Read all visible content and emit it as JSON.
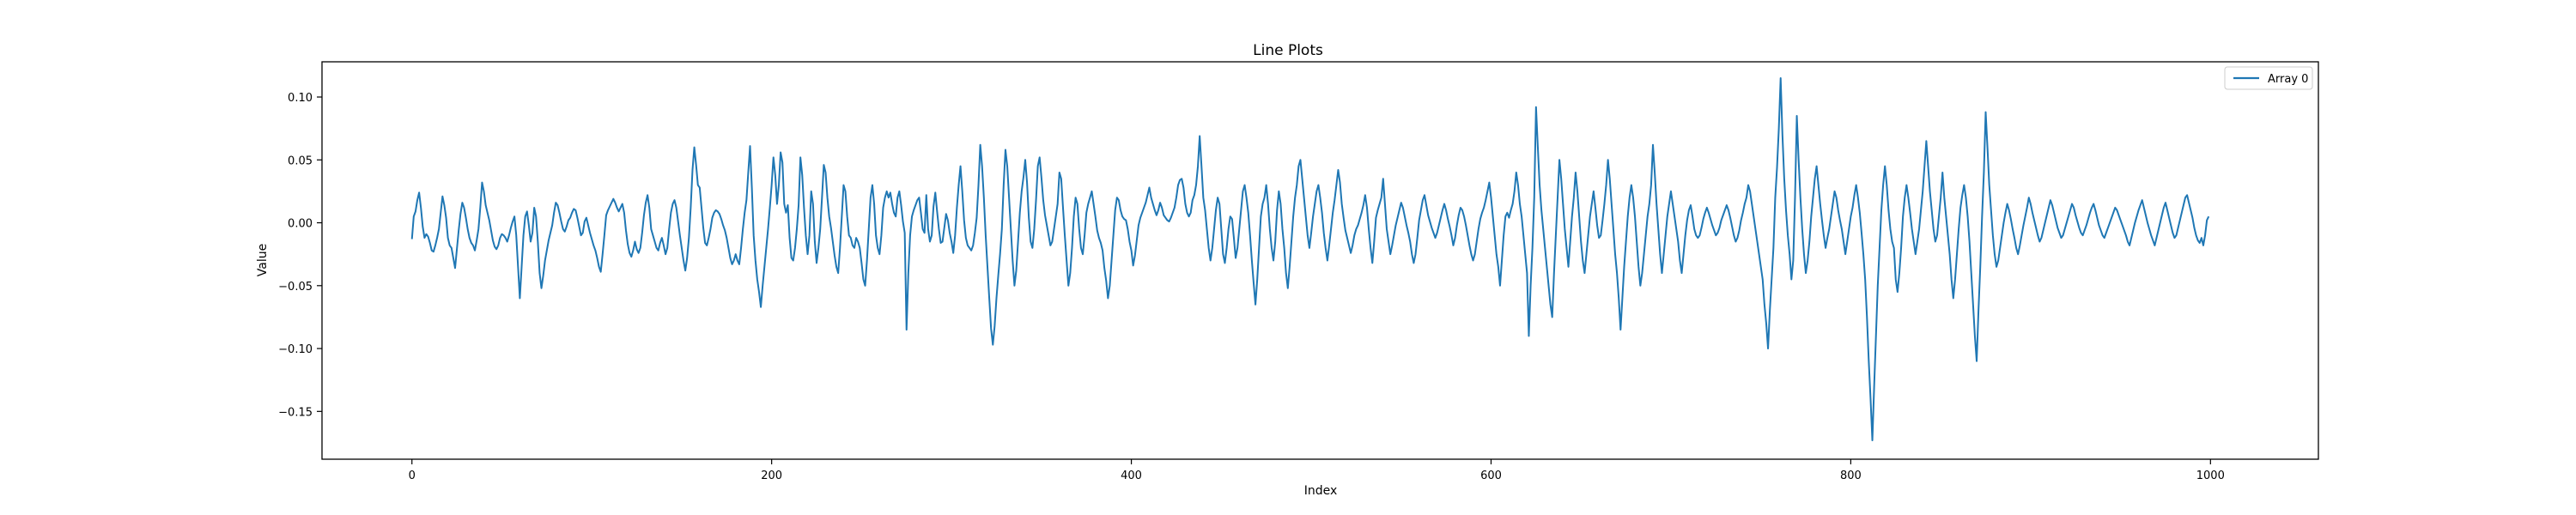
{
  "chart_data": {
    "type": "line",
    "title": "Line Plots",
    "xlabel": "Index",
    "ylabel": "Value",
    "xlim": [
      -50,
      1060
    ],
    "ylim": [
      -0.188,
      0.128
    ],
    "xticks": [
      0,
      200,
      400,
      600,
      800,
      1000
    ],
    "yticks": [
      -0.15,
      -0.1,
      -0.05,
      0.0,
      0.05,
      0.1
    ],
    "xtick_labels": [
      "0",
      "200",
      "400",
      "600",
      "800",
      "1000"
    ],
    "ytick_labels": [
      "−0.15",
      "−0.10",
      "−0.05",
      "0.00",
      "0.05",
      "0.10"
    ],
    "grid": false,
    "legend": {
      "position": "top-right",
      "entries": [
        "Array 0"
      ]
    },
    "series": [
      {
        "name": "Array 0",
        "color": "#1f77b4",
        "x_start": 0,
        "x_step": 1,
        "values": [
          -0.013,
          0.005,
          0.009,
          0.018,
          0.024,
          0.012,
          -0.003,
          -0.012,
          -0.009,
          -0.011,
          -0.016,
          -0.022,
          -0.023,
          -0.018,
          -0.012,
          -0.005,
          0.008,
          0.021,
          0.014,
          0.004,
          -0.012,
          -0.018,
          -0.02,
          -0.028,
          -0.036,
          -0.021,
          -0.006,
          0.007,
          0.016,
          0.012,
          0.004,
          -0.005,
          -0.012,
          -0.016,
          -0.018,
          -0.022,
          -0.014,
          -0.005,
          0.012,
          0.032,
          0.025,
          0.014,
          0.008,
          0.002,
          -0.006,
          -0.014,
          -0.019,
          -0.021,
          -0.018,
          -0.012,
          -0.009,
          -0.01,
          -0.012,
          -0.015,
          -0.01,
          -0.004,
          0.001,
          0.005,
          -0.01,
          -0.035,
          -0.06,
          -0.035,
          -0.01,
          0.005,
          0.009,
          -0.002,
          -0.015,
          -0.008,
          0.012,
          0.005,
          -0.015,
          -0.04,
          -0.052,
          -0.042,
          -0.03,
          -0.022,
          -0.014,
          -0.008,
          -0.002,
          0.008,
          0.016,
          0.014,
          0.008,
          0.001,
          -0.005,
          -0.007,
          -0.003,
          0.002,
          0.004,
          0.008,
          0.011,
          0.01,
          0.004,
          -0.003,
          -0.01,
          -0.008,
          0.001,
          0.004,
          -0.002,
          -0.008,
          -0.013,
          -0.018,
          -0.022,
          -0.028,
          -0.035,
          -0.039,
          -0.025,
          -0.01,
          0.006,
          0.01,
          0.013,
          0.016,
          0.019,
          0.016,
          0.012,
          0.009,
          0.012,
          0.015,
          0.008,
          -0.006,
          -0.017,
          -0.024,
          -0.027,
          -0.022,
          -0.015,
          -0.021,
          -0.024,
          -0.02,
          -0.008,
          0.006,
          0.016,
          0.022,
          0.012,
          -0.005,
          -0.01,
          -0.015,
          -0.02,
          -0.022,
          -0.016,
          -0.012,
          -0.018,
          -0.025,
          -0.02,
          -0.005,
          0.008,
          0.015,
          0.018,
          0.012,
          0.001,
          -0.01,
          -0.02,
          -0.03,
          -0.038,
          -0.028,
          -0.012,
          0.012,
          0.042,
          0.06,
          0.046,
          0.03,
          0.028,
          0.012,
          -0.004,
          -0.016,
          -0.018,
          -0.012,
          -0.005,
          0.004,
          0.008,
          0.01,
          0.009,
          0.007,
          0.003,
          -0.002,
          -0.006,
          -0.012,
          -0.02,
          -0.028,
          -0.033,
          -0.03,
          -0.025,
          -0.03,
          -0.033,
          -0.02,
          -0.005,
          0.008,
          0.018,
          0.04,
          0.061,
          0.028,
          -0.01,
          -0.03,
          -0.045,
          -0.055,
          -0.067,
          -0.05,
          -0.035,
          -0.02,
          -0.005,
          0.012,
          0.03,
          0.052,
          0.038,
          0.015,
          0.03,
          0.056,
          0.048,
          0.015,
          0.008,
          0.014,
          -0.012,
          -0.028,
          -0.03,
          -0.02,
          -0.005,
          0.014,
          0.052,
          0.038,
          0.012,
          -0.01,
          -0.025,
          -0.01,
          0.025,
          0.015,
          -0.015,
          -0.032,
          -0.02,
          -0.005,
          0.02,
          0.046,
          0.04,
          0.02,
          0.005,
          -0.004,
          -0.015,
          -0.026,
          -0.035,
          -0.04,
          -0.02,
          0.005,
          0.03,
          0.025,
          0.005,
          -0.01,
          -0.012,
          -0.018,
          -0.02,
          -0.012,
          -0.015,
          -0.02,
          -0.032,
          -0.045,
          -0.05,
          -0.03,
          -0.005,
          0.02,
          0.03,
          0.015,
          -0.01,
          -0.02,
          -0.025,
          -0.01,
          0.012,
          0.02,
          0.025,
          0.02,
          0.024,
          0.015,
          0.008,
          0.005,
          0.02,
          0.025,
          0.014,
          0.001,
          -0.008,
          -0.085,
          -0.04,
          -0.01,
          0.005,
          0.01,
          0.014,
          0.018,
          0.02,
          0.008,
          -0.005,
          -0.008,
          0.022,
          -0.005,
          -0.015,
          -0.01,
          0.013,
          0.024,
          0.009,
          -0.005,
          -0.016,
          -0.015,
          -0.004,
          0.007,
          0.002,
          -0.008,
          -0.015,
          -0.024,
          -0.01,
          0.012,
          0.03,
          0.045,
          0.025,
          0.002,
          -0.012,
          -0.018,
          -0.02,
          -0.022,
          -0.018,
          -0.008,
          0.004,
          0.03,
          0.062,
          0.045,
          0.02,
          -0.01,
          -0.035,
          -0.06,
          -0.084,
          -0.097,
          -0.082,
          -0.06,
          -0.042,
          -0.025,
          -0.005,
          0.03,
          0.058,
          0.045,
          0.02,
          -0.005,
          -0.03,
          -0.05,
          -0.038,
          -0.015,
          0.008,
          0.025,
          0.036,
          0.05,
          0.032,
          0.004,
          -0.015,
          -0.02,
          -0.005,
          0.018,
          0.045,
          0.052,
          0.036,
          0.018,
          0.006,
          -0.002,
          -0.01,
          -0.018,
          -0.015,
          -0.005,
          0.005,
          0.015,
          0.04,
          0.035,
          0.012,
          -0.01,
          -0.03,
          -0.05,
          -0.04,
          -0.02,
          0.005,
          0.02,
          0.015,
          -0.005,
          -0.02,
          -0.025,
          -0.01,
          0.008,
          0.015,
          0.02,
          0.025,
          0.015,
          0.005,
          -0.006,
          -0.012,
          -0.016,
          -0.022,
          -0.036,
          -0.046,
          -0.06,
          -0.05,
          -0.03,
          -0.01,
          0.01,
          0.02,
          0.018,
          0.01,
          0.005,
          0.003,
          0.002,
          -0.005,
          -0.015,
          -0.022,
          -0.034,
          -0.026,
          -0.014,
          -0.002,
          0.004,
          0.008,
          0.012,
          0.016,
          0.022,
          0.028,
          0.02,
          0.015,
          0.01,
          0.006,
          0.01,
          0.016,
          0.012,
          0.006,
          0.004,
          0.002,
          0.001,
          0.004,
          0.008,
          0.012,
          0.02,
          0.03,
          0.034,
          0.035,
          0.028,
          0.015,
          0.008,
          0.005,
          0.008,
          0.018,
          0.022,
          0.03,
          0.045,
          0.069,
          0.045,
          0.02,
          0.01,
          -0.005,
          -0.02,
          -0.03,
          -0.02,
          -0.005,
          0.01,
          0.02,
          0.015,
          -0.005,
          -0.025,
          -0.032,
          -0.02,
          -0.005,
          0.005,
          0.003,
          -0.012,
          -0.028,
          -0.02,
          -0.005,
          0.01,
          0.025,
          0.03,
          0.02,
          0.008,
          -0.01,
          -0.03,
          -0.048,
          -0.065,
          -0.045,
          -0.02,
          0.005,
          0.015,
          0.02,
          0.03,
          0.015,
          -0.005,
          -0.02,
          -0.03,
          -0.015,
          0.01,
          0.025,
          0.015,
          -0.005,
          -0.02,
          -0.04,
          -0.052,
          -0.035,
          -0.015,
          0.005,
          0.02,
          0.03,
          0.045,
          0.05,
          0.035,
          0.02,
          0.005,
          -0.01,
          -0.02,
          -0.008,
          0.005,
          0.015,
          0.025,
          0.03,
          0.02,
          0.008,
          -0.008,
          -0.02,
          -0.03,
          -0.018,
          -0.005,
          0.008,
          0.018,
          0.03,
          0.042,
          0.032,
          0.015,
          0.004,
          -0.006,
          -0.012,
          -0.018,
          -0.024,
          -0.018,
          -0.01,
          -0.005,
          -0.002,
          0.003,
          0.008,
          0.014,
          0.022,
          0.012,
          -0.005,
          -0.02,
          -0.032,
          -0.015,
          0.004,
          0.01,
          0.015,
          0.02,
          0.035,
          0.015,
          -0.005,
          -0.015,
          -0.025,
          -0.018,
          -0.01,
          -0.002,
          0.004,
          0.01,
          0.016,
          0.012,
          0.005,
          -0.002,
          -0.008,
          -0.015,
          -0.025,
          -0.032,
          -0.025,
          -0.012,
          0.002,
          0.01,
          0.018,
          0.022,
          0.014,
          0.006,
          0.001,
          -0.004,
          -0.008,
          -0.012,
          -0.008,
          -0.002,
          0.004,
          0.01,
          0.015,
          0.01,
          0.003,
          -0.003,
          -0.01,
          -0.018,
          -0.012,
          -0.002,
          0.006,
          0.012,
          0.01,
          0.005,
          -0.002,
          -0.01,
          -0.018,
          -0.025,
          -0.03,
          -0.025,
          -0.015,
          -0.005,
          0.003,
          0.008,
          0.012,
          0.018,
          0.025,
          0.032,
          0.02,
          0.005,
          -0.01,
          -0.025,
          -0.035,
          -0.05,
          -0.03,
          -0.01,
          0.005,
          0.008,
          0.004,
          0.01,
          0.015,
          0.025,
          0.04,
          0.03,
          0.015,
          0.005,
          -0.01,
          -0.025,
          -0.04,
          -0.09,
          -0.05,
          -0.02,
          0.02,
          0.092,
          0.06,
          0.03,
          0.01,
          -0.005,
          -0.02,
          -0.035,
          -0.05,
          -0.065,
          -0.075,
          -0.04,
          -0.01,
          0.02,
          0.05,
          0.035,
          0.015,
          -0.005,
          -0.02,
          -0.035,
          -0.015,
          0.005,
          0.02,
          0.04,
          0.025,
          0.005,
          -0.015,
          -0.03,
          -0.04,
          -0.025,
          -0.01,
          0.005,
          0.015,
          0.025,
          0.012,
          -0.002,
          -0.012,
          -0.01,
          0.002,
          0.015,
          0.03,
          0.05,
          0.035,
          0.015,
          -0.005,
          -0.025,
          -0.04,
          -0.06,
          -0.085,
          -0.06,
          -0.035,
          -0.015,
          0.005,
          0.02,
          0.03,
          0.02,
          0.005,
          -0.015,
          -0.035,
          -0.05,
          -0.04,
          -0.025,
          -0.01,
          0.005,
          0.015,
          0.03,
          0.062,
          0.04,
          0.015,
          -0.005,
          -0.025,
          -0.04,
          -0.025,
          -0.01,
          0.005,
          0.015,
          0.025,
          0.015,
          0.005,
          -0.005,
          -0.015,
          -0.03,
          -0.04,
          -0.025,
          -0.01,
          0.002,
          0.01,
          0.014,
          0.005,
          -0.005,
          -0.01,
          -0.012,
          -0.01,
          -0.004,
          0.003,
          0.008,
          0.012,
          0.008,
          0.003,
          -0.002,
          -0.006,
          -0.01,
          -0.008,
          -0.004,
          0.002,
          0.006,
          0.01,
          0.014,
          0.01,
          0.004,
          -0.003,
          -0.01,
          -0.015,
          -0.012,
          -0.006,
          0.002,
          0.008,
          0.015,
          0.02,
          0.03,
          0.025,
          0.015,
          0.005,
          -0.005,
          -0.015,
          -0.025,
          -0.035,
          -0.045,
          -0.065,
          -0.08,
          -0.1,
          -0.07,
          -0.045,
          -0.02,
          0.02,
          0.044,
          0.075,
          0.115,
          0.07,
          0.035,
          0.01,
          -0.01,
          -0.025,
          -0.045,
          -0.03,
          0.02,
          0.085,
          0.05,
          0.02,
          -0.005,
          -0.025,
          -0.04,
          -0.03,
          -0.015,
          0.005,
          0.02,
          0.035,
          0.045,
          0.03,
          0.015,
          0.002,
          -0.01,
          -0.02,
          -0.012,
          -0.005,
          0.005,
          0.015,
          0.025,
          0.02,
          0.01,
          0.002,
          -0.005,
          -0.015,
          -0.025,
          -0.015,
          -0.005,
          0.005,
          0.012,
          0.022,
          0.03,
          0.02,
          0.008,
          -0.008,
          -0.025,
          -0.045,
          -0.075,
          -0.11,
          -0.14,
          -0.173,
          -0.13,
          -0.09,
          -0.05,
          -0.02,
          0.01,
          0.03,
          0.045,
          0.03,
          0.01,
          -0.005,
          -0.015,
          -0.02,
          -0.045,
          -0.055,
          -0.04,
          -0.02,
          0.005,
          0.02,
          0.03,
          0.02,
          0.008,
          -0.005,
          -0.015,
          -0.025,
          -0.015,
          -0.005,
          0.01,
          0.025,
          0.045,
          0.065,
          0.045,
          0.025,
          0.01,
          -0.005,
          -0.015,
          -0.01,
          0.005,
          0.02,
          0.04,
          0.02,
          0.005,
          -0.01,
          -0.025,
          -0.045,
          -0.06,
          -0.045,
          -0.025,
          -0.005,
          0.012,
          0.022,
          0.03,
          0.02,
          0.005,
          -0.015,
          -0.04,
          -0.065,
          -0.09,
          -0.11,
          -0.07,
          -0.035,
          0.005,
          0.04,
          0.088,
          0.06,
          0.03,
          0.01,
          -0.01,
          -0.025,
          -0.035,
          -0.03,
          -0.02,
          -0.01,
          0.0,
          0.008,
          0.015,
          0.01,
          0.003,
          -0.005,
          -0.012,
          -0.02,
          -0.025,
          -0.018,
          -0.01,
          -0.002,
          0.005,
          0.012,
          0.02,
          0.015,
          0.008,
          0.002,
          -0.004,
          -0.01,
          -0.015,
          -0.012,
          -0.006,
          0.0,
          0.006,
          0.012,
          0.018,
          0.014,
          0.008,
          0.002,
          -0.004,
          -0.008,
          -0.012,
          -0.01,
          -0.005,
          0.0,
          0.005,
          0.01,
          0.015,
          0.012,
          0.006,
          0.001,
          -0.004,
          -0.008,
          -0.01,
          -0.006,
          -0.002,
          0.003,
          0.008,
          0.012,
          0.015,
          0.01,
          0.004,
          -0.002,
          -0.006,
          -0.01,
          -0.012,
          -0.008,
          -0.004,
          0.0,
          0.004,
          0.008,
          0.012,
          0.01,
          0.006,
          0.002,
          -0.002,
          -0.006,
          -0.01,
          -0.015,
          -0.018,
          -0.012,
          -0.006,
          0.0,
          0.005,
          0.01,
          0.014,
          0.018,
          0.012,
          0.006,
          0.0,
          -0.005,
          -0.01,
          -0.014,
          -0.018,
          -0.012,
          -0.006,
          0.0,
          0.006,
          0.012,
          0.016,
          0.01,
          0.004,
          -0.002,
          -0.008,
          -0.012,
          -0.01,
          -0.004,
          0.002,
          0.008,
          0.014,
          0.02,
          0.022,
          0.016,
          0.01,
          0.004,
          -0.004,
          -0.01,
          -0.014,
          -0.016,
          -0.012,
          -0.018,
          -0.01,
          0.002,
          0.005
        ]
      }
    ]
  }
}
